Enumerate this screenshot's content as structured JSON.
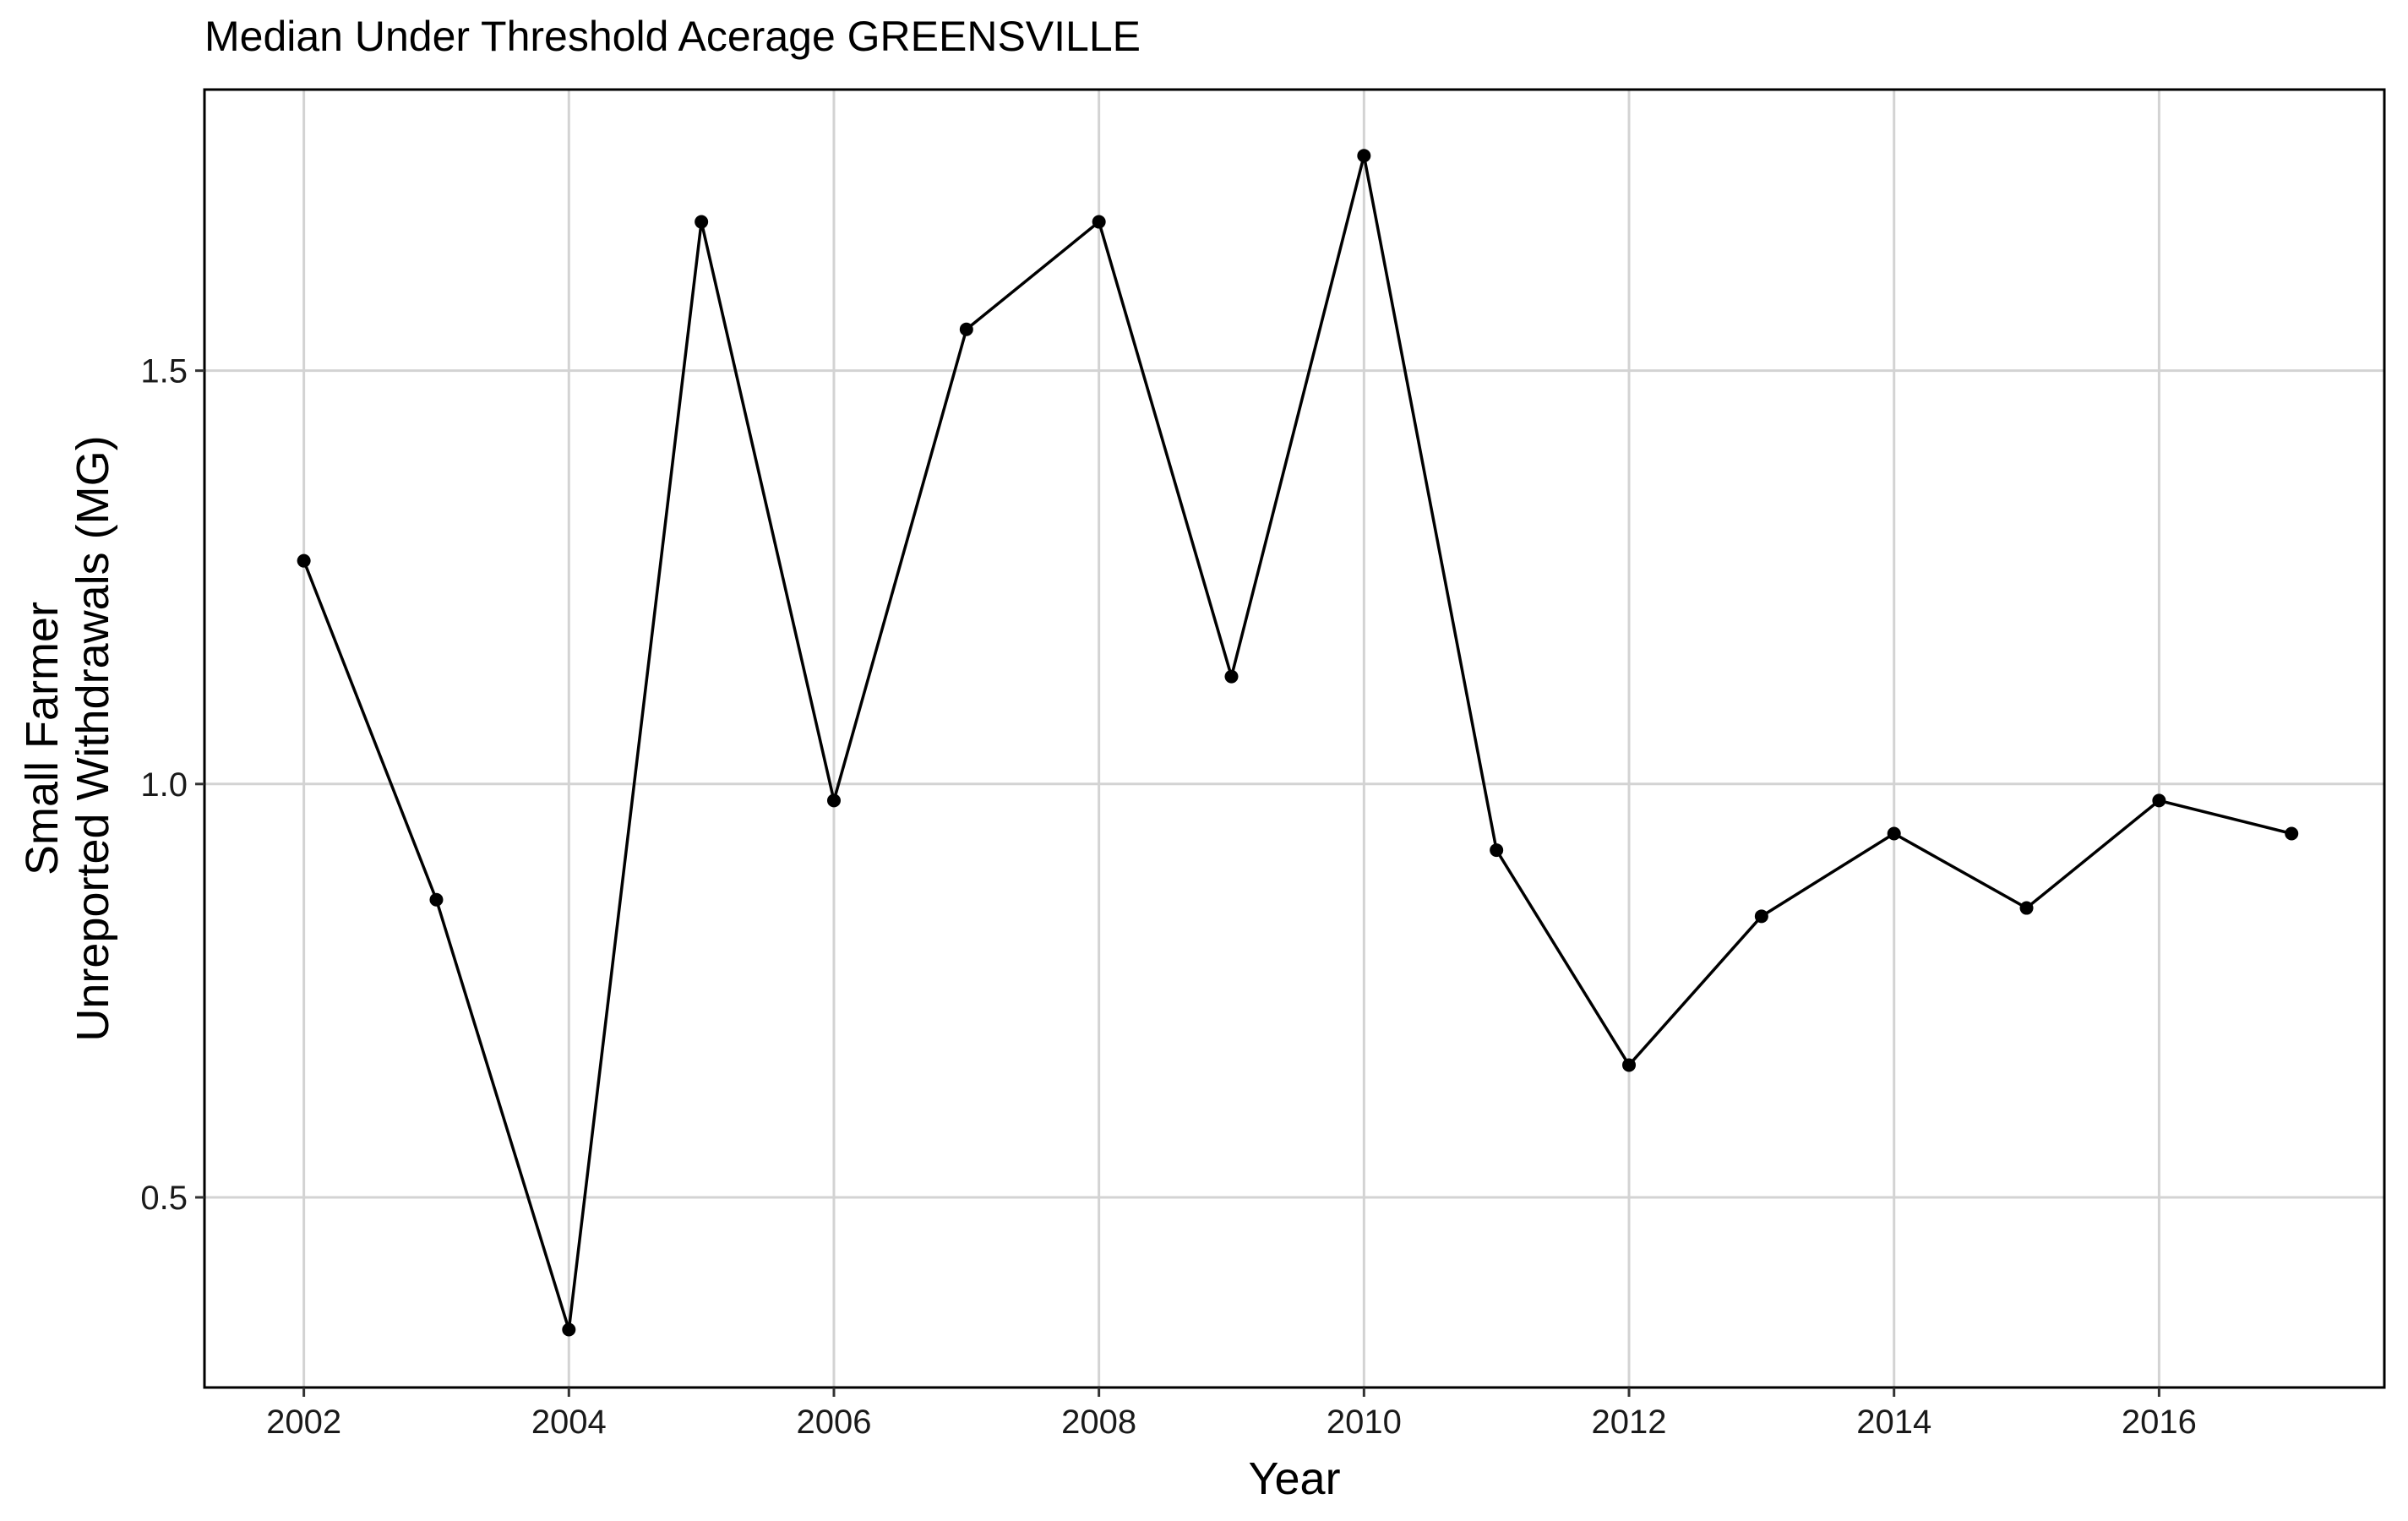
{
  "chart_data": {
    "type": "line",
    "title": "Median Under Threshold Acerage GREENSVILLE",
    "xlabel": "Year",
    "ylabel": [
      "Small Farmer",
      "Unreported Withdrawals (MG)"
    ],
    "x": [
      2002,
      2003,
      2004,
      2005,
      2006,
      2007,
      2008,
      2009,
      2010,
      2011,
      2012,
      2013,
      2014,
      2015,
      2016,
      2017
    ],
    "series": [
      {
        "values": [
          1.27,
          0.86,
          0.34,
          1.68,
          0.98,
          1.55,
          1.68,
          1.13,
          1.76,
          0.92,
          0.66,
          0.84,
          0.94,
          0.85,
          0.98,
          0.94
        ]
      }
    ],
    "xlim": [
      2001.25,
      2017.7
    ],
    "ylim": [
      0.27,
      1.84
    ],
    "xticks": [
      2002,
      2004,
      2006,
      2008,
      2010,
      2012,
      2014,
      2016
    ],
    "xtick_labels": [
      "2002",
      "2004",
      "2006",
      "2008",
      "2010",
      "2012",
      "2014",
      "2016"
    ],
    "yticks": [
      0.5,
      1.0,
      1.5
    ],
    "ytick_labels": [
      "0.5",
      "1.0",
      "1.5"
    ],
    "grid": true,
    "legend": "none",
    "colors": {
      "line": "#000000",
      "grid": "#d3d3d3"
    }
  }
}
